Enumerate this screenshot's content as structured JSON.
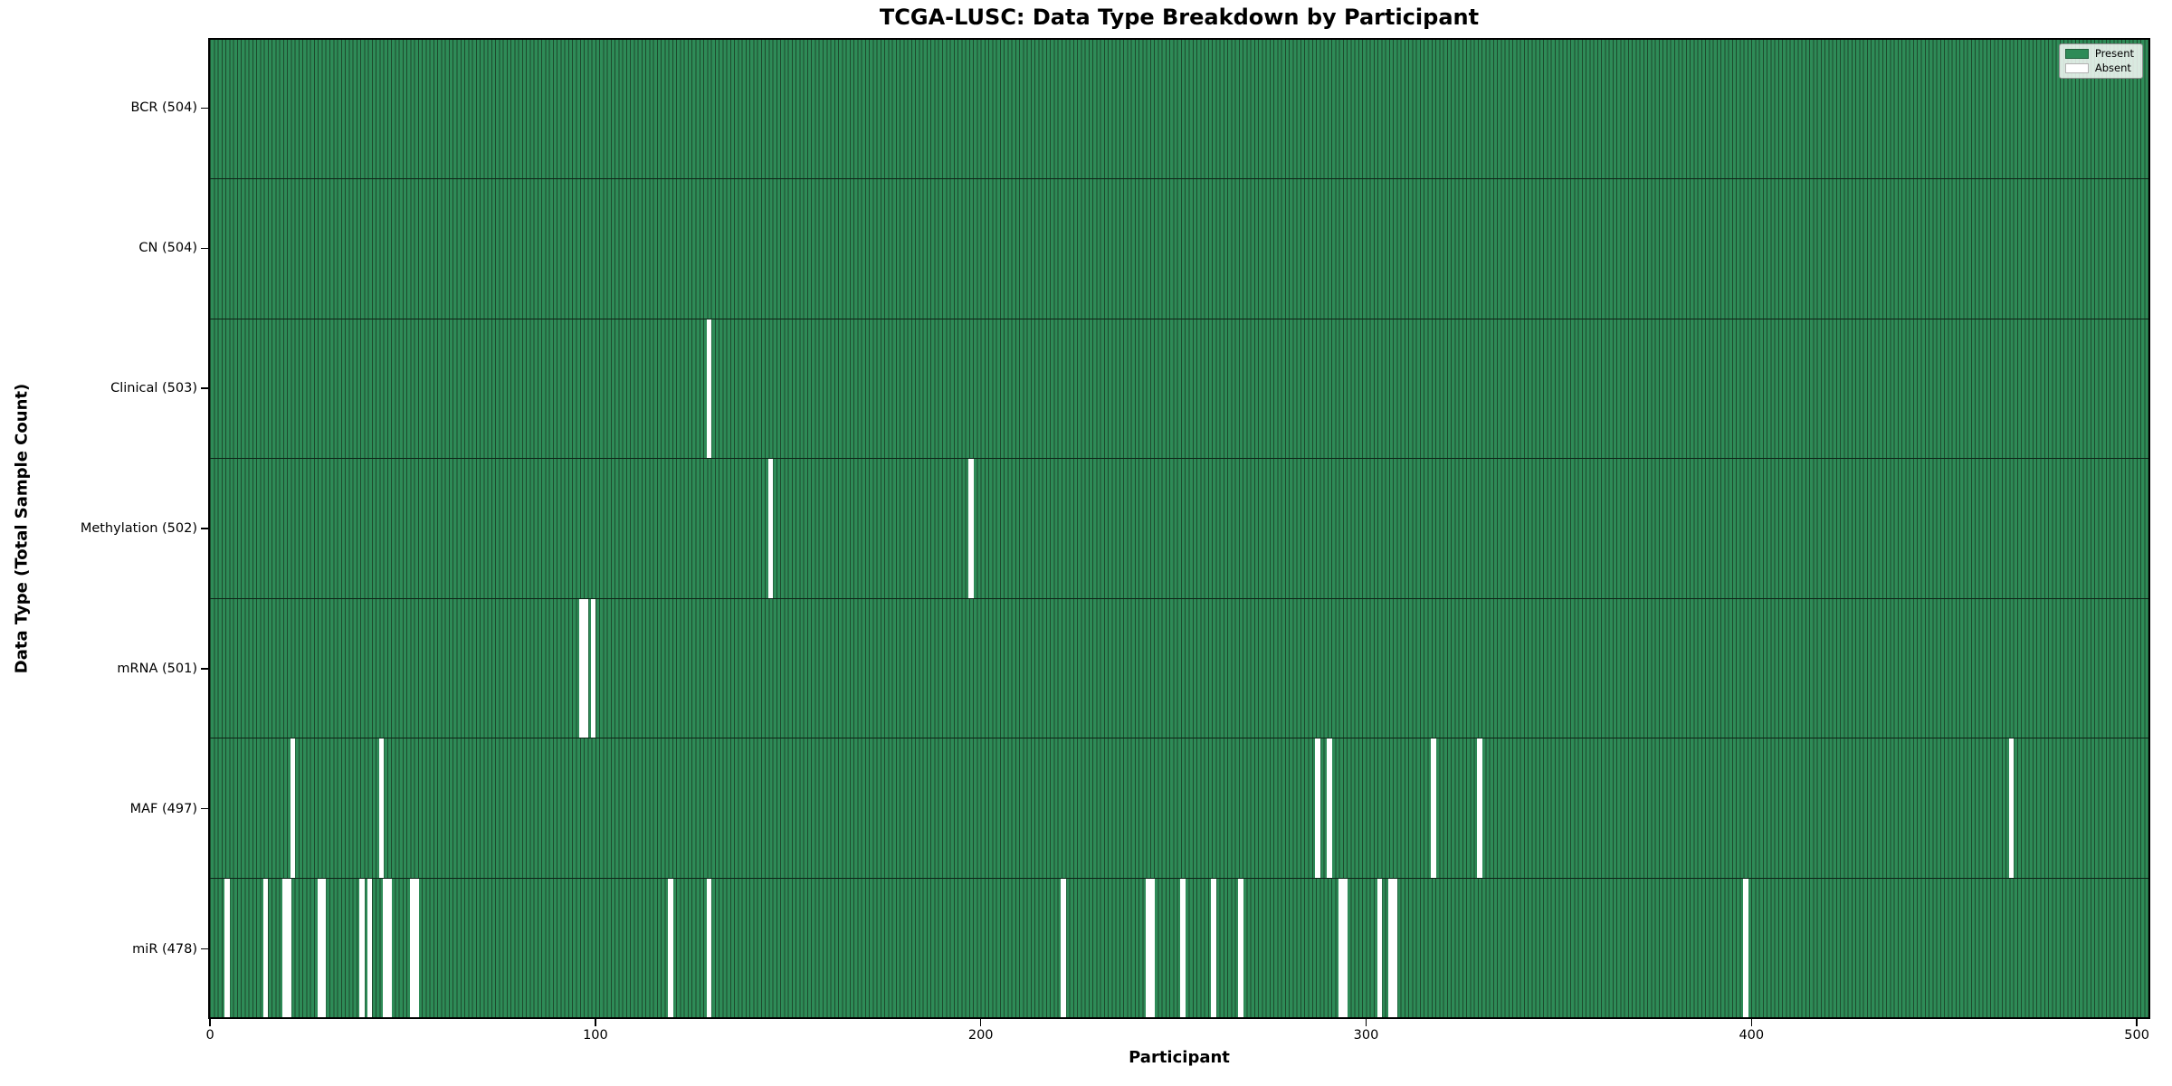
{
  "chart_data": {
    "type": "heatmap",
    "title": "TCGA-LUSC: Data Type Breakdown by Participant",
    "xlabel": "Participant",
    "ylabel": "Data Type (Total Sample Count)",
    "n_participants": 504,
    "x_ticks": [
      0,
      100,
      200,
      300,
      400,
      500
    ],
    "legend": [
      {
        "label": "Present",
        "color": "#2e8b57"
      },
      {
        "label": "Absent",
        "color": "#ffffff"
      }
    ],
    "colors": {
      "present": "#2e8b57",
      "absent": "#ffffff",
      "bar_edge": "#1d4a2d",
      "row_divider": "#0d2417"
    },
    "legend_position": "upper right",
    "rows": [
      {
        "data_type": "BCR",
        "label": "BCR (504)",
        "present_count": 504,
        "absent_participants": []
      },
      {
        "data_type": "CN",
        "label": "CN (504)",
        "present_count": 504,
        "absent_participants": []
      },
      {
        "data_type": "Clinical",
        "label": "Clinical (503)",
        "present_count": 503,
        "absent_participants": [
          129
        ]
      },
      {
        "data_type": "Methylation",
        "label": "Methylation (502)",
        "present_count": 502,
        "absent_participants": [
          145,
          197
        ]
      },
      {
        "data_type": "mRNA",
        "label": "mRNA (501)",
        "present_count": 501,
        "absent_participants": [
          96,
          97,
          99
        ]
      },
      {
        "data_type": "MAF",
        "label": "MAF (497)",
        "present_count": 497,
        "absent_participants": [
          21,
          44,
          287,
          290,
          317,
          329,
          467
        ]
      },
      {
        "data_type": "miR",
        "label": "miR (478)",
        "present_count": 478,
        "absent_participants": [
          4,
          14,
          19,
          20,
          28,
          29,
          39,
          41,
          45,
          46,
          52,
          53,
          119,
          129,
          221,
          243,
          244,
          252,
          260,
          267,
          293,
          294,
          303,
          306,
          307,
          398
        ]
      }
    ]
  }
}
